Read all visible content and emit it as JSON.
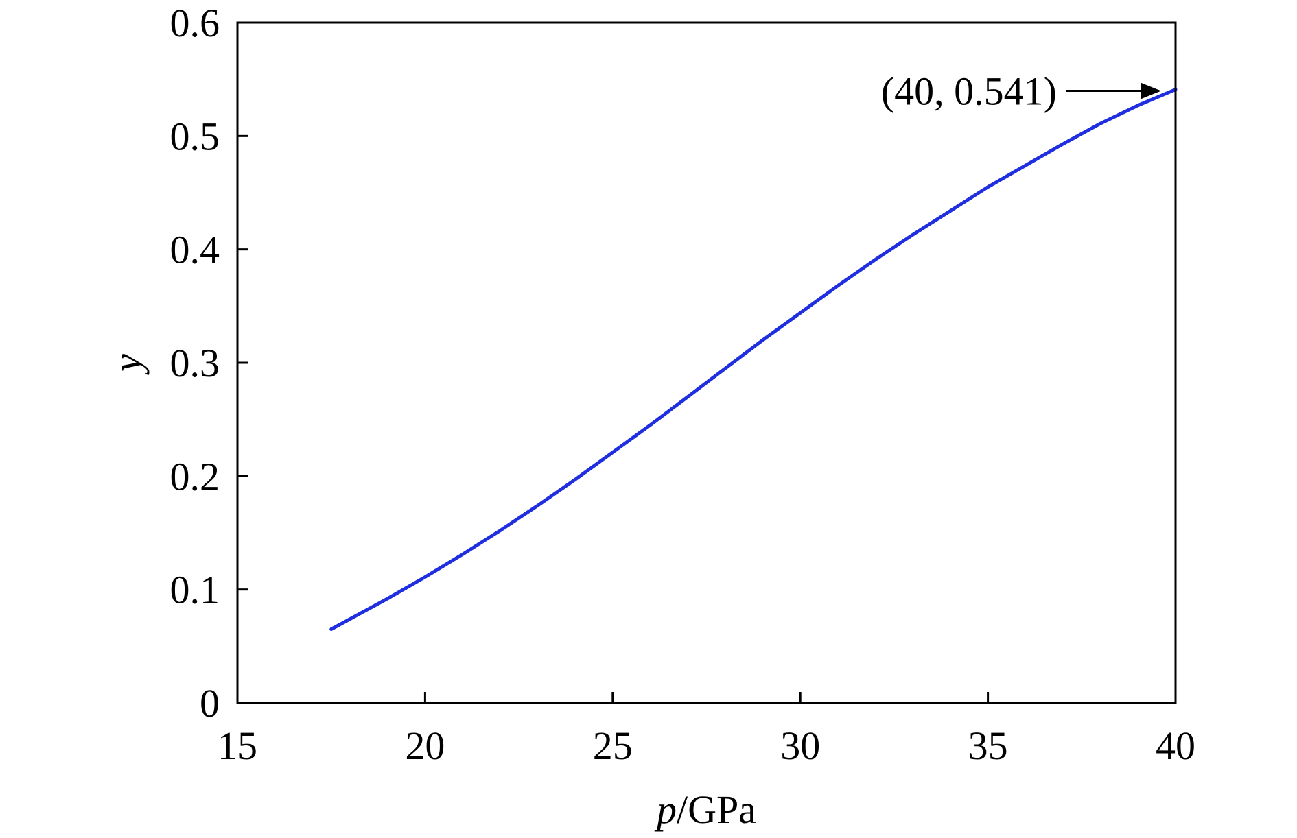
{
  "chart_data": {
    "type": "line",
    "title": "",
    "xlabel": {
      "var": "p",
      "unit": "/GPa"
    },
    "ylabel": "y",
    "xlim": [
      15,
      40
    ],
    "ylim": [
      0,
      0.6
    ],
    "x_ticks": [
      15,
      20,
      25,
      30,
      35,
      40
    ],
    "y_ticks": [
      0,
      0.1,
      0.2,
      0.3,
      0.4,
      0.5,
      0.6
    ],
    "x_tick_labels": [
      "15",
      "20",
      "25",
      "30",
      "35",
      "40"
    ],
    "y_tick_labels": [
      "0",
      "0.1",
      "0.2",
      "0.3",
      "0.4",
      "0.5",
      "0.6"
    ],
    "grid": false,
    "legend": "none",
    "series": [
      {
        "color": "#1f2fe0",
        "x": [
          17.5,
          18,
          19,
          20,
          21,
          22,
          23,
          24,
          25,
          26,
          27,
          28,
          29,
          30,
          31,
          32,
          33,
          34,
          35,
          36,
          37,
          38,
          39,
          40
        ],
        "y": [
          0.065,
          0.074,
          0.092,
          0.111,
          0.131,
          0.152,
          0.174,
          0.197,
          0.221,
          0.245,
          0.27,
          0.295,
          0.32,
          0.344,
          0.368,
          0.391,
          0.413,
          0.434,
          0.455,
          0.474,
          0.493,
          0.511,
          0.527,
          0.541
        ]
      }
    ],
    "annotations": [
      {
        "text": "(40, 0.541)",
        "x": 40,
        "y": 0.541
      }
    ]
  }
}
